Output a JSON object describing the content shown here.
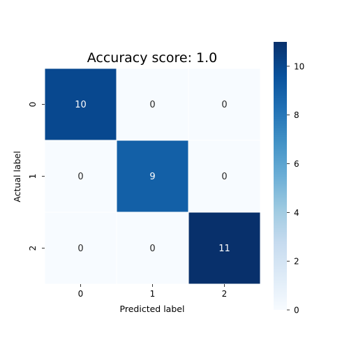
{
  "chart_data": {
    "type": "heatmap",
    "title": "Accuracy score: 1.0",
    "xlabel": "Predicted label",
    "ylabel": "Actual label",
    "x_categories": [
      "0",
      "1",
      "2"
    ],
    "y_categories": [
      "0",
      "1",
      "2"
    ],
    "values": [
      [
        10,
        0,
        0
      ],
      [
        0,
        9,
        0
      ],
      [
        0,
        0,
        11
      ]
    ],
    "colormap": "Blues",
    "value_range": [
      0,
      11
    ],
    "colorbar_ticks": [
      "0",
      "2",
      "4",
      "6",
      "8",
      "10"
    ],
    "colorbar_tick_values": [
      0,
      2,
      4,
      6,
      8,
      10
    ],
    "grid": false,
    "cell_border_color": "#ffffff"
  }
}
